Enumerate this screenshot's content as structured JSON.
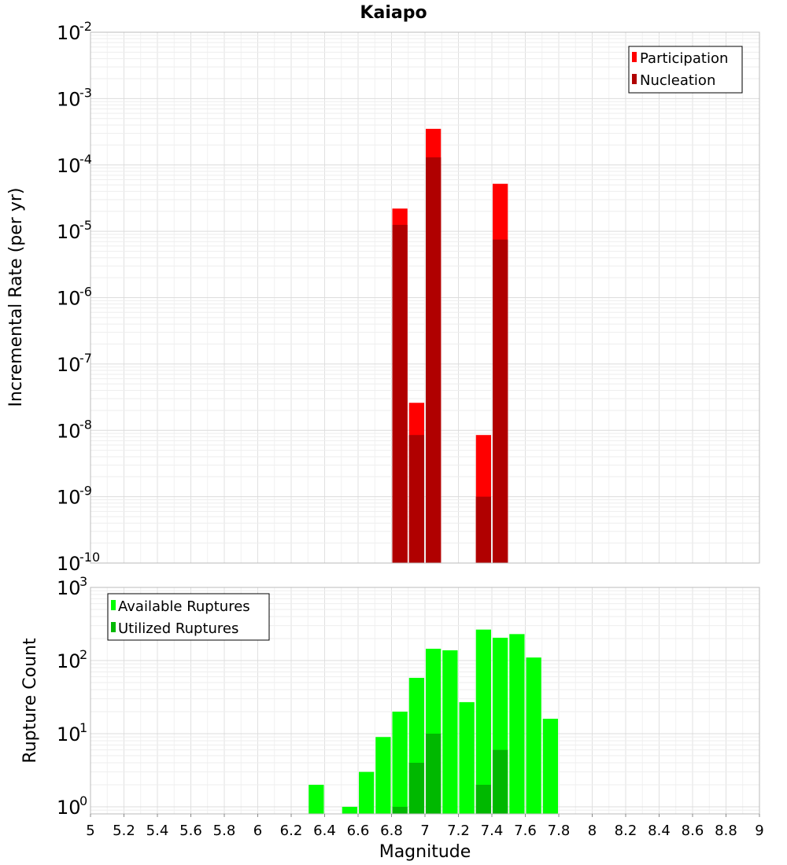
{
  "chart_data": [
    {
      "type": "bar",
      "title": "Kaiapo",
      "xlabel": "",
      "ylabel": "Incremental Rate (per yr)",
      "xlim": [
        5,
        9
      ],
      "ylim": [
        1e-10,
        0.01
      ],
      "yscale": "log",
      "grid": true,
      "legend_position": "top-right",
      "x": [
        6.85,
        6.95,
        7.05,
        7.35,
        7.45
      ],
      "series": [
        {
          "name": "Participation",
          "color": "#ff0000",
          "values": [
            2.2e-05,
            2.6e-08,
            0.00035,
            8.5e-09,
            5.2e-05
          ]
        },
        {
          "name": "Nucleation",
          "color": "#b00000",
          "values": [
            1.25e-05,
            8.5e-09,
            0.00013,
            1e-09,
            7.5e-06
          ]
        }
      ],
      "ytick_exponents": [
        -10,
        -9,
        -8,
        -7,
        -6,
        -5,
        -4,
        -3,
        -2
      ]
    },
    {
      "type": "bar",
      "title": "",
      "xlabel": "Magnitude",
      "ylabel": "Rupture Count",
      "xlim": [
        5,
        9
      ],
      "ylim": [
        0.8,
        1000
      ],
      "yscale": "log",
      "grid": true,
      "legend_position": "top-left",
      "x": [
        6.35,
        6.55,
        6.65,
        6.75,
        6.85,
        6.95,
        7.05,
        7.15,
        7.25,
        7.35,
        7.45,
        7.55,
        7.65,
        7.75
      ],
      "series": [
        {
          "name": "Available Ruptures",
          "color": "#00ff00",
          "values": [
            2,
            1,
            3,
            9,
            20,
            58,
            145,
            138,
            27,
            265,
            205,
            230,
            110,
            16
          ]
        },
        {
          "name": "Utilized Ruptures",
          "color": "#00b800",
          "values": [
            0,
            0,
            0,
            0,
            1,
            4,
            10,
            0,
            0,
            2,
            6,
            0,
            0,
            0
          ]
        }
      ],
      "ytick_exponents": [
        0,
        1,
        2,
        3
      ],
      "xticks": [
        "5",
        "5.2",
        "5.4",
        "5.6",
        "5.8",
        "6",
        "6.2",
        "6.4",
        "6.6",
        "6.8",
        "7",
        "7.2",
        "7.4",
        "7.6",
        "7.8",
        "8",
        "8.2",
        "8.4",
        "8.6",
        "8.8",
        "9"
      ]
    }
  ]
}
